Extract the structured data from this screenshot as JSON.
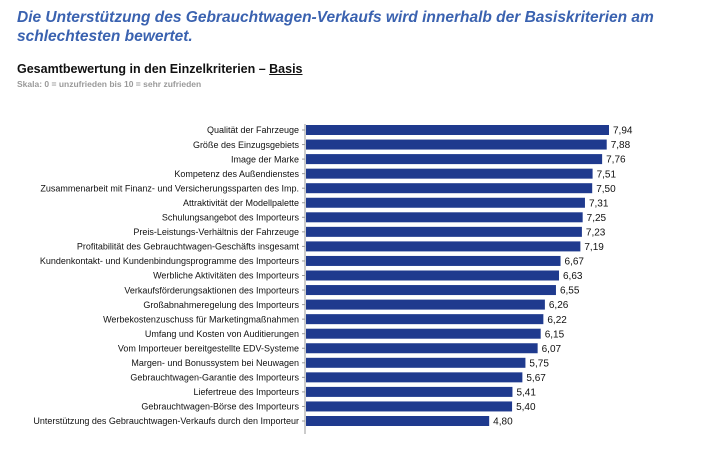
{
  "headline": "Die Unterstützung des Gebrauchtwagen-Verkaufs wird innerhalb der Basiskriterien am schlechtesten bewertet.",
  "subtitle": {
    "prefix": "Gesamtbewertung in den Einzelkriterien – ",
    "highlight": "Basis"
  },
  "scale_note": "Skala: 0 = unzufrieden bis 10 = sehr zufrieden",
  "colors": {
    "headline": "#3a62b0",
    "bar": "#1f3a8e"
  },
  "chart_data": {
    "type": "bar",
    "orientation": "horizontal",
    "title": "",
    "xlabel": "",
    "ylabel": "",
    "xlim": [
      0,
      8.2
    ],
    "grid": false,
    "legend": "none",
    "categories": [
      "Qualität der Fahrzeuge",
      "Größe des Einzugsgebiets",
      "Image der Marke",
      "Kompetenz des Außendienstes",
      "Zusammenarbeit mit Finanz- und Versicherungssparten des Imp.",
      "Attraktivität der Modellpalette",
      "Schulungsangebot des Importeurs",
      "Preis-Leistungs-Verhältnis der Fahrzeuge",
      "Profitabilität des Gebrauchtwagen-Geschäfts insgesamt",
      "Kundenkontakt- und Kundenbindungsprogramme des Importeurs",
      "Werbliche Aktivitäten des Importeurs",
      "Verkaufsförderungsaktionen des Importeurs",
      "Großabnahmeregelung des Importeurs",
      "Werbekostenzuschuss für Marketingmaßnahmen",
      "Umfang und Kosten von Auditierungen",
      "Vom Importeuer bereitgestellte EDV-Systeme",
      "Margen- und Bonussystem bei Neuwagen",
      "Gebrauchtwagen-Garantie des Importeurs",
      "Liefertreue des Importeurs",
      "Gebrauchtwagen-Börse des Importeurs",
      "Unterstützung des Gebrauchtwagen-Verkaufs durch den Importeur"
    ],
    "values": [
      7.94,
      7.88,
      7.76,
      7.51,
      7.5,
      7.31,
      7.25,
      7.23,
      7.19,
      6.67,
      6.63,
      6.55,
      6.26,
      6.22,
      6.15,
      6.07,
      5.75,
      5.67,
      5.41,
      5.4,
      4.8
    ],
    "value_labels": [
      "7,94",
      "7,88",
      "7,76",
      "7,51",
      "7,50",
      "7,31",
      "7,25",
      "7,23",
      "7,19",
      "6,67",
      "6,63",
      "6,55",
      "6,26",
      "6,22",
      "6,15",
      "6,07",
      "5,75",
      "5,67",
      "5,41",
      "5,40",
      "4,80"
    ]
  }
}
